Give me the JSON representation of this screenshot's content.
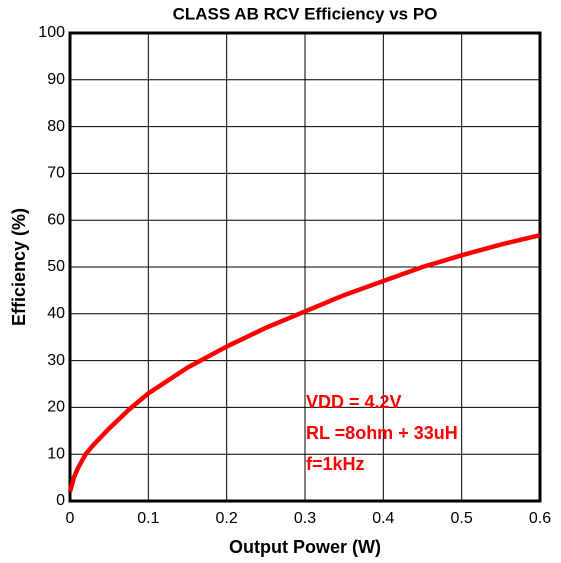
{
  "chart_data": {
    "type": "line",
    "title": "CLASS AB RCV Efficiency vs PO",
    "x_label": "Output Power (W)",
    "y_label": "Efficiency (%)",
    "annotations": [
      "VDD = 4.2V",
      "RL =8ohm + 33uH",
      "f=1kHz"
    ],
    "x": [
      0,
      0.005,
      0.01,
      0.02,
      0.03,
      0.05,
      0.075,
      0.1,
      0.15,
      0.2,
      0.25,
      0.3,
      0.35,
      0.4,
      0.45,
      0.5,
      0.55,
      0.6
    ],
    "series": [
      {
        "name": "Efficiency",
        "color": "#ff0000",
        "values": [
          2,
          5,
          7,
          10,
          12,
          15.5,
          19.5,
          23,
          28.5,
          33,
          37,
          40.5,
          44,
          47,
          50,
          52.5,
          54.8,
          56.8
        ]
      }
    ],
    "xlim": [
      0,
      0.6
    ],
    "xticks": [
      0,
      0.1,
      0.2,
      0.3,
      0.4,
      0.5,
      0.6
    ],
    "ylim": [
      0,
      100
    ],
    "yticks": [
      0,
      10,
      20,
      30,
      40,
      50,
      60,
      70,
      80,
      90,
      100
    ],
    "grid": true
  }
}
